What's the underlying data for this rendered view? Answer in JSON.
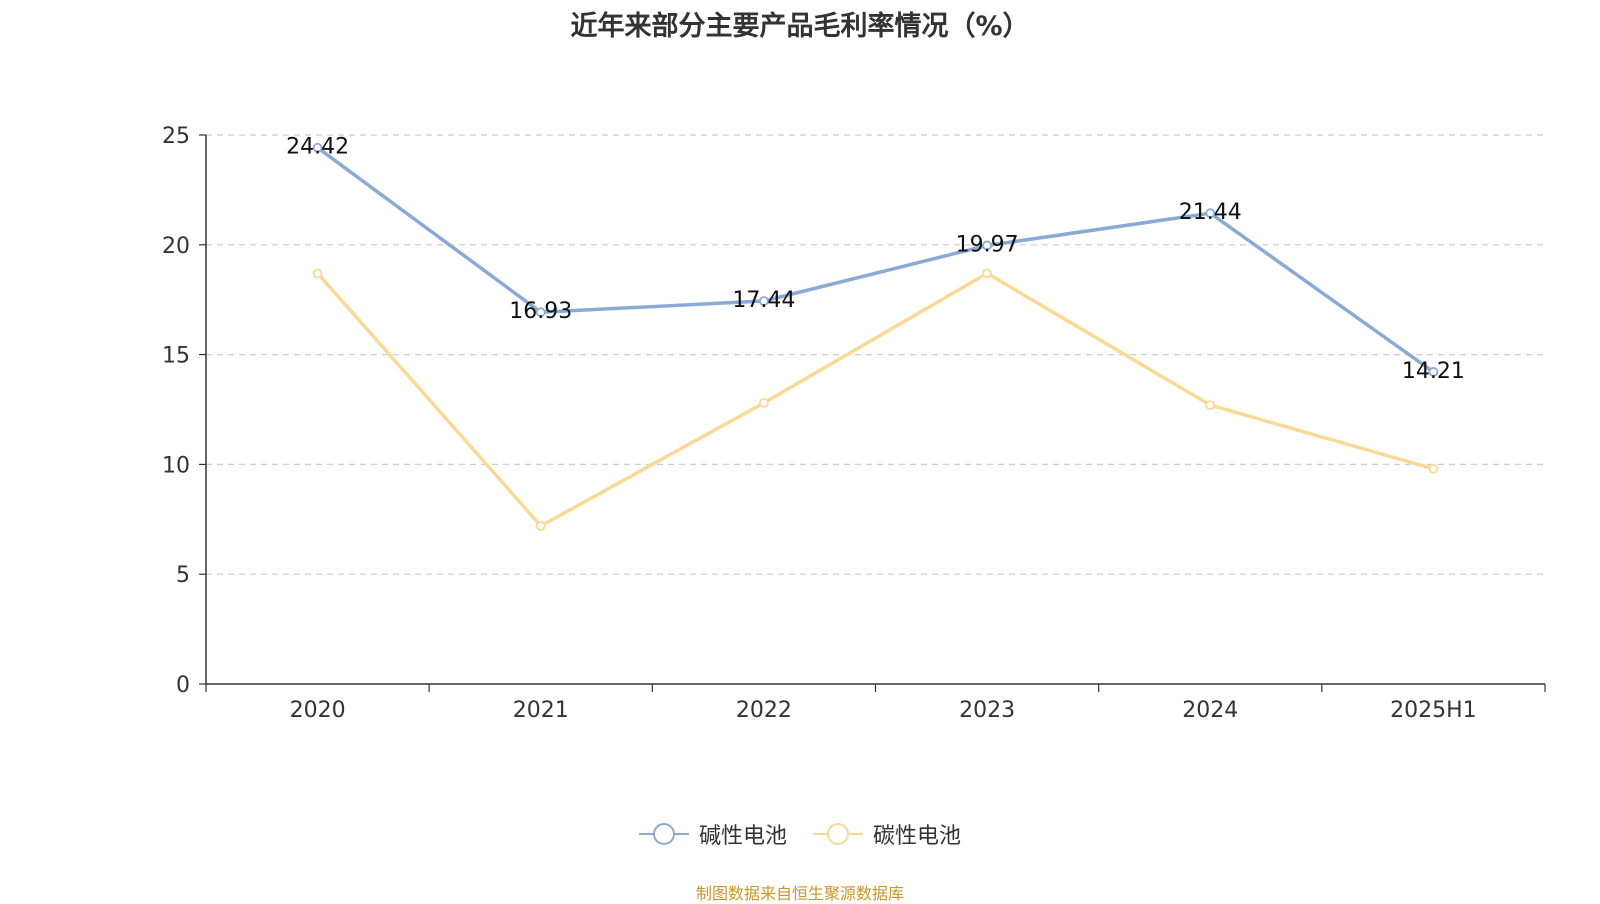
{
  "chart_data": {
    "type": "line",
    "title": "近年来部分主要产品毛利率情况（%）",
    "categories": [
      "2020",
      "2021",
      "2022",
      "2023",
      "2024",
      "2025H1"
    ],
    "series": [
      {
        "name": "碱性电池",
        "values": [
          24.42,
          16.93,
          17.44,
          19.97,
          21.44,
          14.21
        ],
        "color": "#8aaad6",
        "show_labels": true,
        "labels": [
          "24.42",
          "16.93",
          "17.44",
          "19.97",
          "21.44",
          "14.21"
        ]
      },
      {
        "name": "碳性电池",
        "values": [
          18.7,
          7.2,
          12.8,
          18.7,
          12.7,
          9.8
        ],
        "color": "#f9d995",
        "show_labels": false
      }
    ],
    "ylim": [
      0,
      25
    ],
    "yticks": [
      "0",
      "5",
      "10",
      "15",
      "20",
      "25"
    ],
    "grid": true,
    "legend": "bottom-center",
    "xlabel": "",
    "ylabel": ""
  },
  "source": "制图数据来自恒生聚源数据库"
}
